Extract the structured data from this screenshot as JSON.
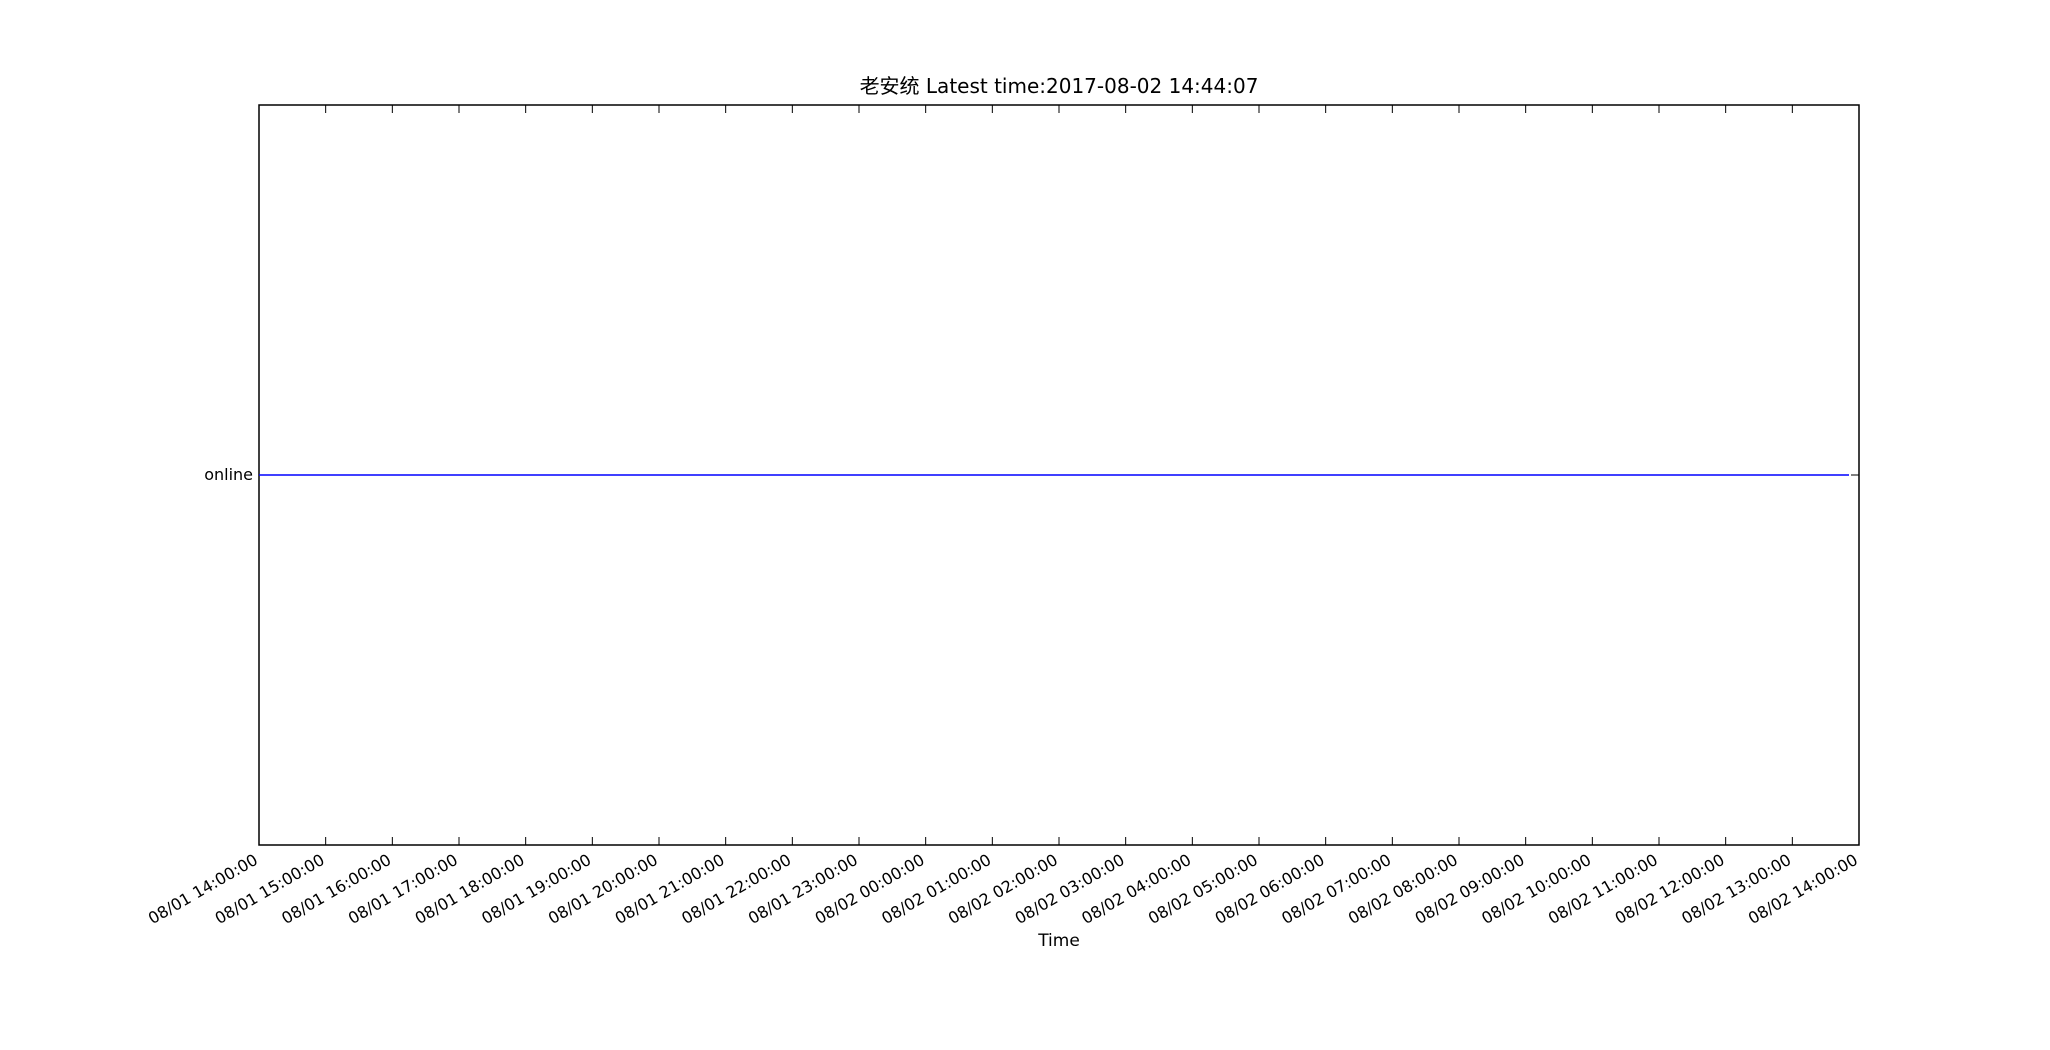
{
  "chart_data": {
    "type": "line",
    "title": "老安统 Latest time:2017-08-02 14:44:07",
    "xlabel": "Time",
    "ylabel": "",
    "grid": false,
    "xlim": [
      "2017-08-01 14:00:00",
      "2017-08-02 14:00:00"
    ],
    "x_ticks": [
      "08/01 14:00:00",
      "08/01 15:00:00",
      "08/01 16:00:00",
      "08/01 17:00:00",
      "08/01 18:00:00",
      "08/01 19:00:00",
      "08/01 20:00:00",
      "08/01 21:00:00",
      "08/01 22:00:00",
      "08/01 23:00:00",
      "08/02 00:00:00",
      "08/02 01:00:00",
      "08/02 02:00:00",
      "08/02 03:00:00",
      "08/02 04:00:00",
      "08/02 05:00:00",
      "08/02 06:00:00",
      "08/02 07:00:00",
      "08/02 08:00:00",
      "08/02 09:00:00",
      "08/02 10:00:00",
      "08/02 11:00:00",
      "08/02 12:00:00",
      "08/02 13:00:00",
      "08/02 14:00:00"
    ],
    "y_categories": [
      "online"
    ],
    "series": [
      {
        "color": "#0000ff",
        "points": [
          {
            "x": "2017-08-01 14:00:00",
            "y": "online"
          },
          {
            "x": "2017-08-02 13:51:00",
            "y": "online"
          }
        ]
      }
    ],
    "colors": {
      "axes": "#000000",
      "line": "#0000ff",
      "background": "#ffffff"
    }
  }
}
